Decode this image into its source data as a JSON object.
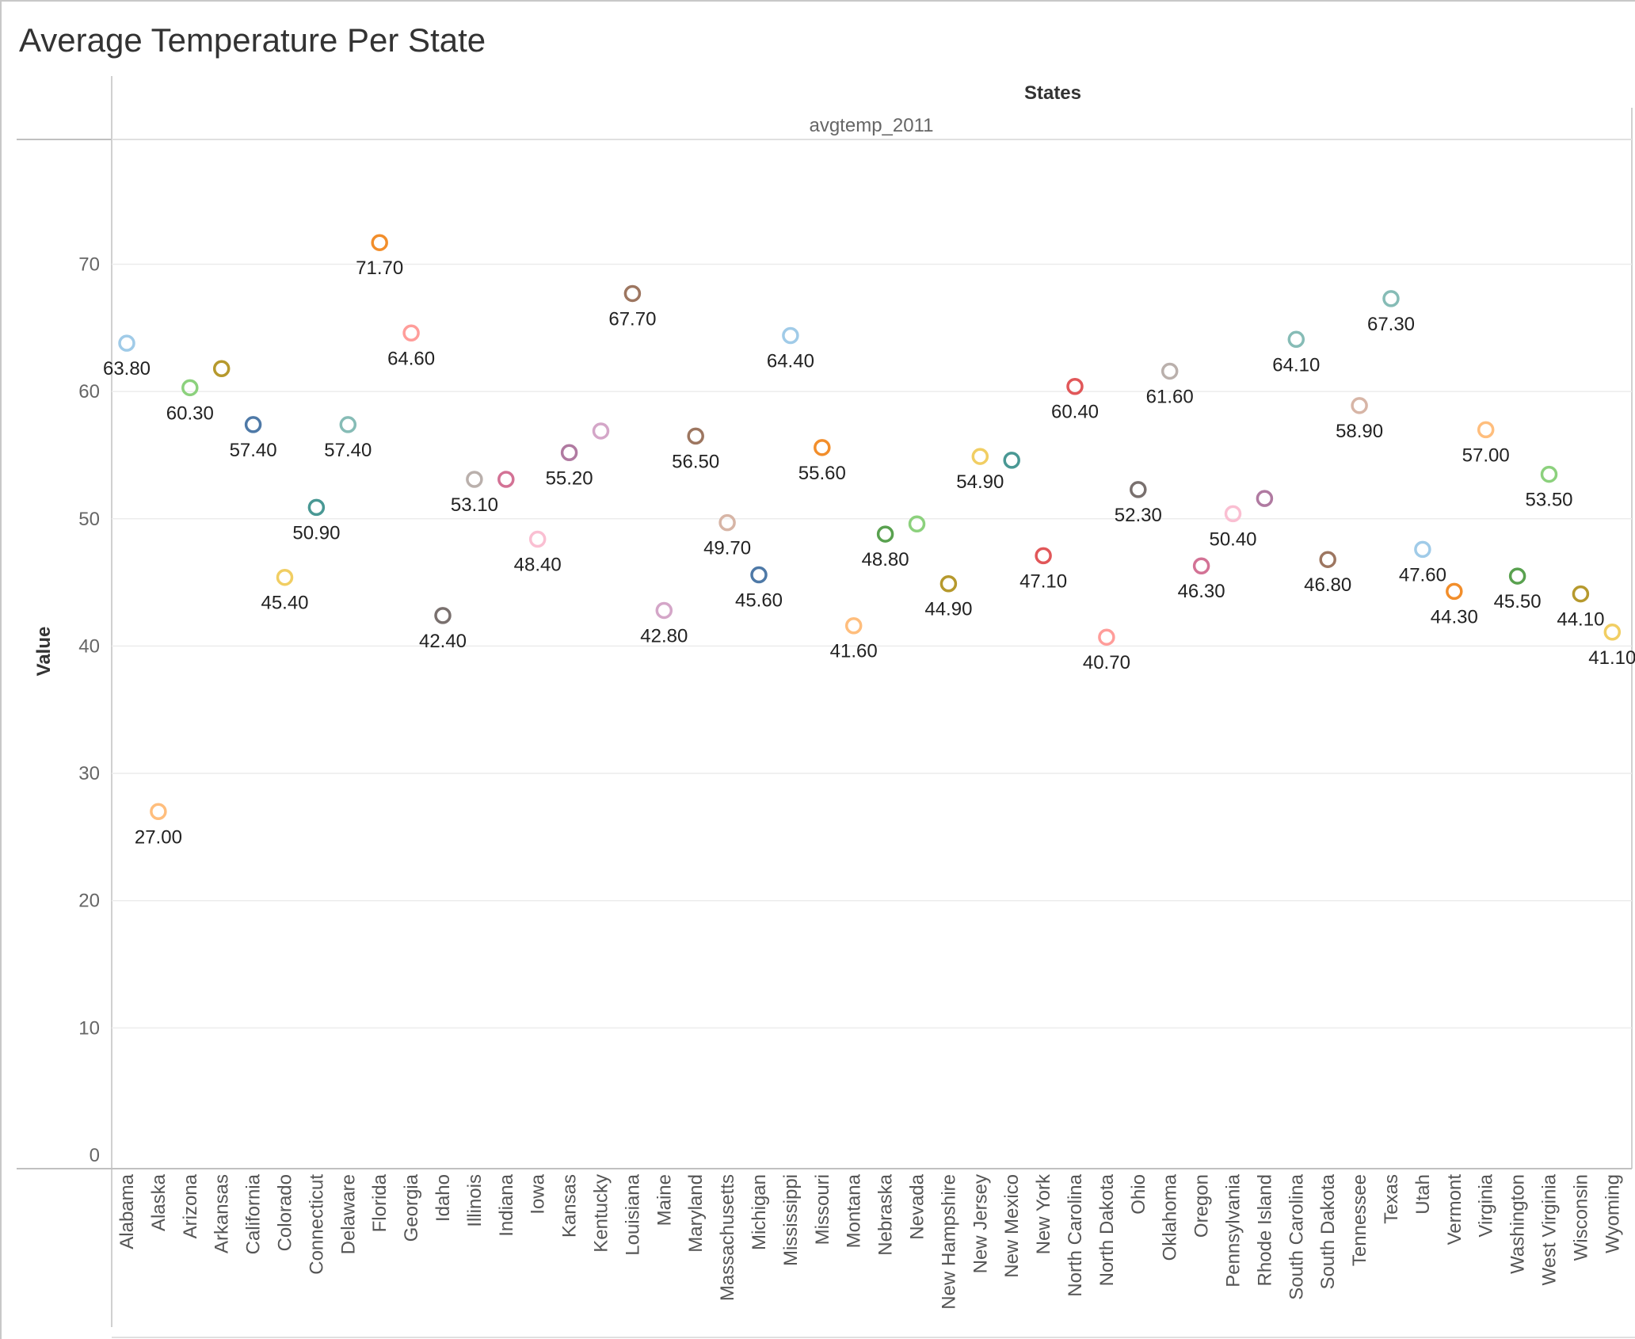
{
  "chart_data": {
    "type": "scatter",
    "title": "Average Temperature Per State",
    "column_header": "States",
    "measure_header": "avgtemp_2011",
    "ylabel": "Value",
    "xlabel": "",
    "ylim": [
      0,
      78
    ],
    "yticks": [
      0,
      10,
      20,
      30,
      40,
      50,
      60,
      70
    ],
    "grid": true,
    "categories": [
      "Alabama",
      "Alaska",
      "Arizona",
      "Arkansas",
      "California",
      "Colorado",
      "Connecticut",
      "Delaware",
      "Florida",
      "Georgia",
      "Idaho",
      "Illinois",
      "Indiana",
      "Iowa",
      "Kansas",
      "Kentucky",
      "Louisiana",
      "Maine",
      "Maryland",
      "Massachusetts",
      "Michigan",
      "Mississippi",
      "Missouri",
      "Montana",
      "Nebraska",
      "Nevada",
      "New Hampshire",
      "New Jersey",
      "New Mexico",
      "New York",
      "North Carolina",
      "North Dakota",
      "Ohio",
      "Oklahoma",
      "Oregon",
      "Pennsylvania",
      "Rhode Island",
      "South Carolina",
      "South Dakota",
      "Tennessee",
      "Texas",
      "Utah",
      "Vermont",
      "Virginia",
      "Washington",
      "West Virginia",
      "Wisconsin",
      "Wyoming"
    ],
    "values": [
      63.8,
      27.0,
      60.3,
      61.8,
      57.4,
      45.4,
      50.9,
      57.4,
      71.7,
      64.6,
      42.4,
      53.1,
      53.1,
      48.4,
      55.2,
      56.9,
      67.7,
      42.8,
      56.5,
      49.7,
      45.6,
      64.4,
      55.6,
      41.6,
      48.8,
      49.6,
      44.9,
      54.9,
      54.6,
      47.1,
      60.4,
      40.7,
      52.3,
      61.6,
      46.3,
      50.4,
      51.6,
      64.1,
      46.8,
      58.9,
      67.3,
      47.6,
      44.3,
      57.0,
      45.5,
      53.5,
      44.1,
      41.1
    ],
    "data_labels": [
      "63.80",
      "27.00",
      "60.30",
      "",
      "57.40",
      "45.40",
      "50.90",
      "57.40",
      "71.70",
      "64.60",
      "42.40",
      "53.10",
      "",
      "48.40",
      "55.20",
      "",
      "67.70",
      "42.80",
      "56.50",
      "49.70",
      "45.60",
      "64.40",
      "55.60",
      "41.60",
      "48.80",
      "",
      "44.90",
      "54.90",
      "",
      "47.10",
      "60.40",
      "40.70",
      "52.30",
      "61.60",
      "46.30",
      "50.40",
      "",
      "64.10",
      "46.80",
      "58.90",
      "67.30",
      "47.60",
      "44.30",
      "57.00",
      "45.50",
      "53.50",
      "44.10",
      "41.10"
    ],
    "colors": [
      "#a0cbe8",
      "#ffbe7d",
      "#8cd17d",
      "#b6992d",
      "#4e79a7",
      "#f1ce63",
      "#499894",
      "#86bcb6",
      "#f28e2b",
      "#ff9d9a",
      "#79706e",
      "#bab0ac",
      "#d37295",
      "#fabfd2",
      "#b07aa1",
      "#d4a6c8",
      "#9d7660",
      "#d4a6c8",
      "#9d7660",
      "#d7b5a6",
      "#4e79a7",
      "#a0cbe8",
      "#f28e2b",
      "#ffbe7d",
      "#59a14f",
      "#8cd17d",
      "#b6992d",
      "#f1ce63",
      "#499894",
      "#e15759",
      "#e15759",
      "#ff9d9a",
      "#79706e",
      "#bab0ac",
      "#d37295",
      "#fabfd2",
      "#b07aa1",
      "#86bcb6",
      "#9d7660",
      "#d7b5a6",
      "#86bcb6",
      "#a0cbe8",
      "#f28e2b",
      "#ffbe7d",
      "#59a14f",
      "#8cd17d",
      "#b6992d",
      "#f1ce63"
    ]
  }
}
